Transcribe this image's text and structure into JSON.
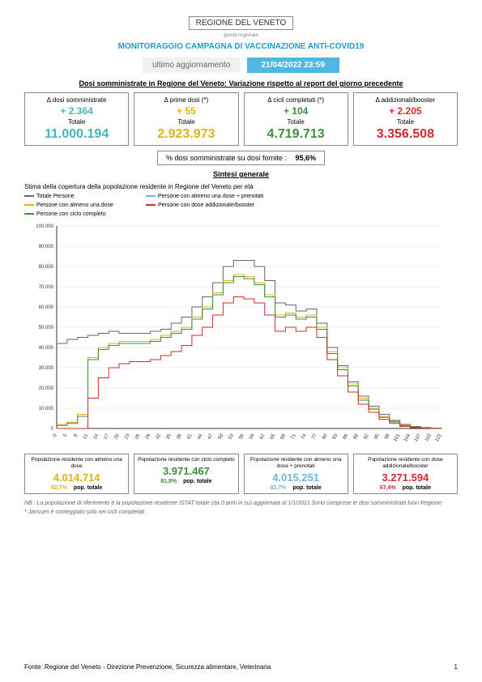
{
  "logo": {
    "main": "REGIONE DEL VENETO",
    "sub": "giunta regionale"
  },
  "title": "MONITORAGGIO CAMPAGNA DI VACCINAZIONE ANTI-COVID19",
  "update": {
    "label": "ultimo aggiornamento",
    "date": "21/04/2022 23:59"
  },
  "section1_title": "Dosi somministrate in Regione del Veneto: Variazione rispetto al report del giorno precedente",
  "boxes": [
    {
      "title": "Δ dosi somministrate",
      "delta": "+ 2.364",
      "label": "Totale",
      "total": "11.000.194",
      "color": "c-teal"
    },
    {
      "title": "Δ prime dosi (*)",
      "delta": "+ 55",
      "label": "Totale",
      "total": "2.923.973",
      "color": "c-yellow"
    },
    {
      "title": "Δ cicli completati (*)",
      "delta": "+ 104",
      "label": "Totale",
      "total": "4.719.713",
      "color": "c-green"
    },
    {
      "title": "Δ addizionali/booster",
      "delta": "+ 2.205",
      "label": "Totale",
      "total": "3.356.508",
      "color": "c-red"
    }
  ],
  "pct": {
    "label": "% dosi somministrate su dosi fornite :",
    "value": "95,6%"
  },
  "section2_title": "Sintesi generale",
  "chart_desc": "Stima della copertura della popolazione residente in Regione del Veneto per età",
  "legend": {
    "col1": [
      {
        "label": "Totale Persone",
        "color": "#666666"
      },
      {
        "label": "Persone con almeno una dose",
        "color": "#e1b30f"
      },
      {
        "label": "Persone con ciclo completo",
        "color": "#3b8f3b"
      }
    ],
    "col2": [
      {
        "label": "Persone con almeno una dose + prenotati",
        "color": "#6fb5e2"
      },
      {
        "label": "Persone con dose addizionale/booster",
        "color": "#d22b2b"
      }
    ]
  },
  "chart": {
    "type": "line-step",
    "ylim": [
      0,
      100000
    ],
    "ytick_step": 10000,
    "yticks": [
      "0",
      "10.000",
      "20.000",
      "30.000",
      "40.000",
      "50.000",
      "60.000",
      "70.000",
      "80.000",
      "90.000",
      "100.000"
    ],
    "xticks": [
      "0",
      "5",
      "8",
      "11",
      "14",
      "17",
      "20",
      "23",
      "26",
      "29",
      "32",
      "35",
      "38",
      "41",
      "44",
      "47",
      "50",
      "53",
      "56",
      "59",
      "62",
      "65",
      "68",
      "71",
      "74",
      "77",
      "80",
      "83",
      "86",
      "89",
      "92",
      "95",
      "98",
      "101",
      "104",
      "107",
      "110",
      "122"
    ],
    "series": {
      "totale": {
        "color": "#666666",
        "values": [
          42000,
          44000,
          45000,
          46000,
          47000,
          48000,
          47000,
          47000,
          47000,
          48000,
          49000,
          52000,
          55000,
          60000,
          65000,
          72000,
          80000,
          83000,
          83000,
          80000,
          73000,
          62000,
          61000,
          58000,
          59000,
          52000,
          40000,
          31000,
          23000,
          16000,
          11000,
          7000,
          4000,
          2000,
          1000,
          500,
          200,
          50
        ]
      },
      "dose1": {
        "color": "#e1b30f",
        "values": [
          2000,
          3000,
          7000,
          35000,
          40000,
          42000,
          43000,
          43000,
          43000,
          44000,
          46000,
          48000,
          50000,
          55000,
          60000,
          67000,
          73000,
          76000,
          75000,
          72000,
          66000,
          56000,
          57000,
          55000,
          56000,
          50000,
          38000,
          30000,
          22000,
          15000,
          10000,
          6000,
          3500,
          1500,
          700,
          300,
          100,
          30
        ]
      },
      "ciclo": {
        "color": "#3b8f3b",
        "values": [
          1500,
          2500,
          6000,
          34000,
          39000,
          41000,
          42000,
          42000,
          42000,
          43000,
          45000,
          47000,
          49000,
          54000,
          59000,
          66000,
          72000,
          75000,
          74000,
          71000,
          65000,
          55000,
          56000,
          54000,
          55000,
          49000,
          37000,
          29000,
          21000,
          14000,
          9500,
          5500,
          3200,
          1300,
          600,
          250,
          80,
          20
        ]
      },
      "pren": {
        "color": "#6fb5e2",
        "values": [
          2000,
          3000,
          7000,
          35000,
          40000,
          42000,
          43000,
          43000,
          43000,
          44000,
          46000,
          48000,
          50000,
          55000,
          60000,
          67000,
          73000,
          76000,
          75000,
          72000,
          66000,
          56000,
          57000,
          55000,
          56000,
          50000,
          38000,
          30000,
          22000,
          15000,
          10000,
          6000,
          3500,
          1500,
          700,
          300,
          100,
          30
        ]
      },
      "booster": {
        "color": "#d22b2b",
        "values": [
          0,
          0,
          0,
          15000,
          25000,
          30000,
          32000,
          33000,
          33000,
          34000,
          36000,
          38000,
          41000,
          46000,
          50000,
          56000,
          62000,
          65000,
          64000,
          62000,
          56000,
          48000,
          50000,
          48000,
          50000,
          45000,
          34000,
          26000,
          18000,
          12000,
          8000,
          4500,
          2500,
          1000,
          400,
          150,
          50,
          10
        ]
      }
    },
    "grid_color": "#eeeeee",
    "axis_color": "#333333",
    "background_color": "#ffffff",
    "label_fontsize": 6
  },
  "sboxes": [
    {
      "title": "Popolazione residente con almeno una dose",
      "value": "4.014.714",
      "pct": "82,7%",
      "suffix": "pop. totale",
      "color": "c-yellow"
    },
    {
      "title": "Popolazione residente con ciclo completo",
      "value": "3.971.467",
      "pct": "81,8%",
      "suffix": "pop. totale",
      "color": "c-green"
    },
    {
      "title": "Popolazione residente con almeno una dose + prenotati",
      "value": "4.015.251",
      "pct": "82,7%",
      "suffix": "pop. totale",
      "color": "c-blue"
    },
    {
      "title": "Popolazione residente con dose addizionale/booster",
      "value": "3.271.594",
      "pct": "67,4%",
      "suffix": "pop. totale",
      "color": "c-red"
    }
  ],
  "footnotes": [
    "NB : La popolazione di riferimento è la popolazione residente ISTAT totale (da 0 anni in su) aggiornata al 1/1/2021.Sono comprese le dosi somministrate fuori Regione",
    "* Janssen è conteggiato solo nei cicli completati"
  ],
  "footer": {
    "text": "Fonte: Regione del Veneto - Direzione Prevenzione, Sicurezza alimentare, Veterinaria",
    "page": "1"
  }
}
